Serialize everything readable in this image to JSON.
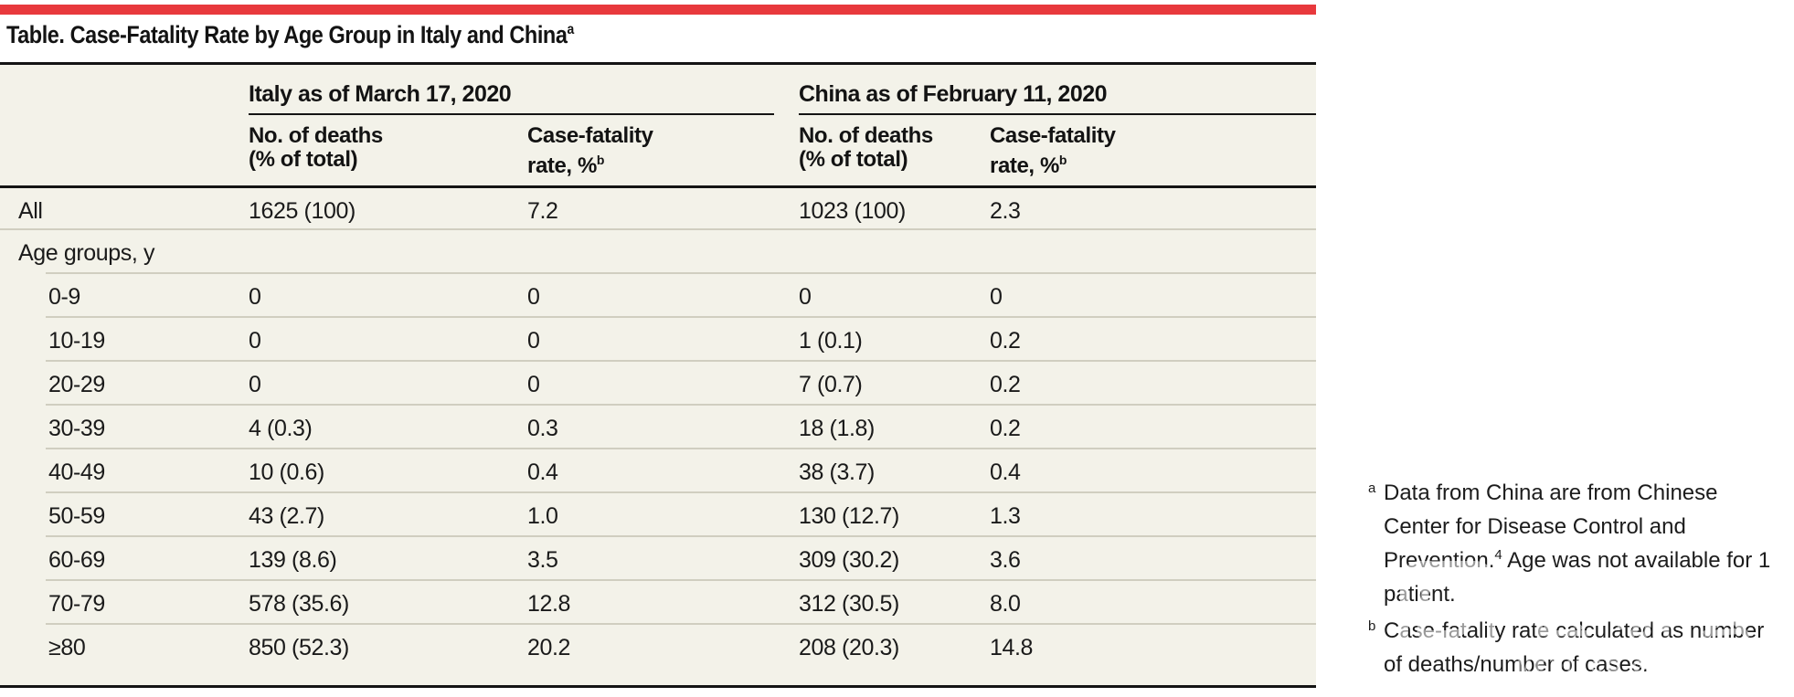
{
  "accent": {
    "bar_color": "#e8393d",
    "panel_color": "#f3f2e9",
    "line_color": "#141414",
    "separator_color": "#d0cec0"
  },
  "table": {
    "title": "Table. Case-Fatality Rate by Age Group in Italy and China",
    "title_footnote_ref": "a",
    "spanners": [
      {
        "label": "Italy as of March 17, 2020"
      },
      {
        "label": "China as of February 11, 2020"
      }
    ],
    "column_headers": {
      "deaths_line1": "No. of deaths",
      "deaths_line2": "(% of total)",
      "cfr_line1": "Case-fatality",
      "cfr_line2": "rate, %",
      "cfr_footnote_ref": "b"
    },
    "rows": [
      {
        "label": "All",
        "italy_deaths": "1625 (100)",
        "italy_cfr": "7.2",
        "china_deaths": "1023 (100)",
        "china_cfr": "2.3"
      },
      {
        "label": "Age groups, y",
        "italy_deaths": "",
        "italy_cfr": "",
        "china_deaths": "",
        "china_cfr": ""
      },
      {
        "label": "0-9",
        "italy_deaths": "0",
        "italy_cfr": "0",
        "china_deaths": "0",
        "china_cfr": "0"
      },
      {
        "label": "10-19",
        "italy_deaths": "0",
        "italy_cfr": "0",
        "china_deaths": "1 (0.1)",
        "china_cfr": "0.2"
      },
      {
        "label": "20-29",
        "italy_deaths": "0",
        "italy_cfr": "0",
        "china_deaths": "7 (0.7)",
        "china_cfr": "0.2"
      },
      {
        "label": "30-39",
        "italy_deaths": "4 (0.3)",
        "italy_cfr": "0.3",
        "china_deaths": "18 (1.8)",
        "china_cfr": "0.2"
      },
      {
        "label": "40-49",
        "italy_deaths": "10 (0.6)",
        "italy_cfr": "0.4",
        "china_deaths": "38 (3.7)",
        "china_cfr": "0.4"
      },
      {
        "label": "50-59",
        "italy_deaths": "43 (2.7)",
        "italy_cfr": "1.0",
        "china_deaths": "130 (12.7)",
        "china_cfr": "1.3"
      },
      {
        "label": "60-69",
        "italy_deaths": "139 (8.6)",
        "italy_cfr": "3.5",
        "china_deaths": "309 (30.2)",
        "china_cfr": "3.6"
      },
      {
        "label": "70-79",
        "italy_deaths": "578 (35.6)",
        "italy_cfr": "12.8",
        "china_deaths": "312 (30.5)",
        "china_cfr": "8.0"
      },
      {
        "label": "≥80",
        "italy_deaths": "850 (52.3)",
        "italy_cfr": "20.2",
        "china_deaths": "208 (20.3)",
        "china_cfr": "14.8"
      }
    ]
  },
  "footnotes": [
    {
      "marker": "a",
      "text_before_ref": "Data from China are from Chinese Center for Disease Control and Prevention.",
      "citation_ref": "4",
      "text_after_ref": " Age was not available for 1 patient."
    },
    {
      "marker": "b",
      "text": "Case-fatality rate calculated as number of deaths/number of cases."
    }
  ],
  "watermark": {
    "cjk_text": "医咖会",
    "latin_text": "MEDIECO GROUP"
  }
}
